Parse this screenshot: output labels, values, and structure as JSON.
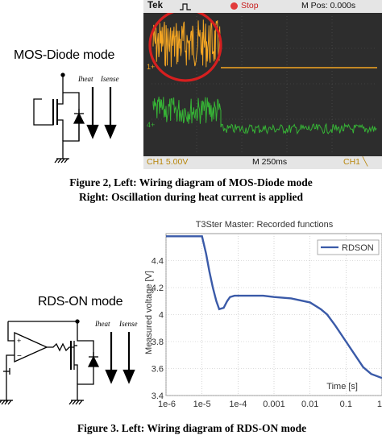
{
  "figure2": {
    "mode_title": "MOS-Diode mode",
    "label_heat": "Iheat",
    "label_sense": "Isense",
    "caption_line1": "Figure 2, Left: Wiring diagram of MOS-Diode mode",
    "caption_line2": "Right: Oscillation during heat current is applied",
    "scope": {
      "brand": "Tek",
      "state": "Stop",
      "position": "M Pos: 0.000s",
      "ch1_scale": "CH1  5.00V",
      "timebase": "M 250ms",
      "trigger": "CH1 ╲",
      "marker_ch1": "1+",
      "marker_ch4": "4+"
    }
  },
  "figure3": {
    "mode_title": "RDS-ON mode",
    "label_heat": "Iheat",
    "label_sense": "Isense",
    "caption_partial": "Figure 3. Left: Wiring diagram of RDS-ON mode"
  },
  "chart_data": {
    "type": "line",
    "title": "T3Ster Master: Recorded functions",
    "xlabel": "Time [s]",
    "ylabel": "Measured voltage [V]",
    "x_scale": "log",
    "xlim": [
      1e-06,
      1
    ],
    "ylim": [
      3.4,
      4.6
    ],
    "x_ticks": [
      "1e-6",
      "1e-5",
      "1e-4",
      "0.001",
      "0.01",
      "0.1",
      "1"
    ],
    "y_ticks": [
      "3.4",
      "3.6",
      "3.8",
      "4",
      "4.2",
      "4.4"
    ],
    "grid": true,
    "legend_position": "top-right",
    "series": [
      {
        "name": "RDSON",
        "color": "#3a5aa8",
        "x": [
          1e-06,
          1e-05,
          1.3e-05,
          1.6e-05,
          2e-05,
          2.5e-05,
          3e-05,
          4e-05,
          5e-05,
          6e-05,
          8e-05,
          0.0001,
          0.0002,
          0.0005,
          0.001,
          0.003,
          0.01,
          0.02,
          0.03,
          0.05,
          0.1,
          0.2,
          0.3,
          0.5,
          1
        ],
        "y": [
          4.58,
          4.58,
          4.45,
          4.32,
          4.2,
          4.1,
          4.04,
          4.05,
          4.1,
          4.13,
          4.14,
          4.14,
          4.14,
          4.14,
          4.13,
          4.12,
          4.09,
          4.04,
          4.0,
          3.92,
          3.8,
          3.68,
          3.61,
          3.56,
          3.53
        ]
      }
    ]
  }
}
